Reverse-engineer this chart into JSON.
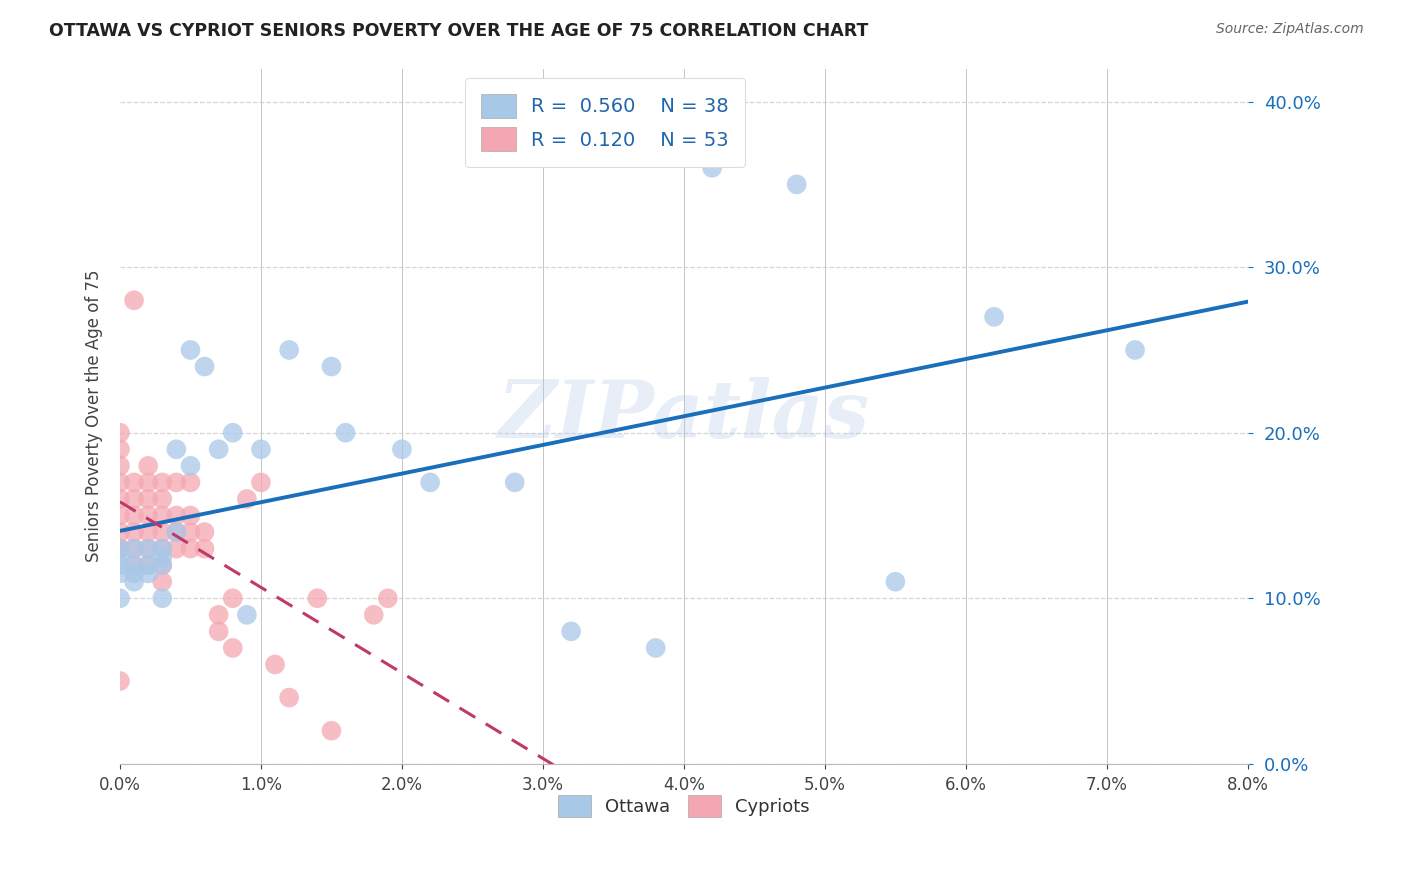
{
  "title": "OTTAWA VS CYPRIOT SENIORS POVERTY OVER THE AGE OF 75 CORRELATION CHART",
  "source": "Source: ZipAtlas.com",
  "ylabel": "Seniors Poverty Over the Age of 75",
  "xlim": [
    0.0,
    0.08
  ],
  "ylim": [
    0.0,
    0.42
  ],
  "xticks": [
    0.0,
    0.01,
    0.02,
    0.03,
    0.04,
    0.05,
    0.06,
    0.07,
    0.08
  ],
  "yticks": [
    0.0,
    0.1,
    0.2,
    0.3,
    0.4
  ],
  "ottawa_color": "#a8c8e8",
  "cypriot_color": "#f4a7b2",
  "ottawa_line_color": "#1a6fba",
  "cypriot_line_color": "#c0396b",
  "ottawa_r": "0.560",
  "ottawa_n": 38,
  "cypriot_r": "0.120",
  "cypriot_n": 53,
  "ottawa_x": [
    0.0,
    0.0,
    0.0,
    0.0,
    0.0,
    0.001,
    0.001,
    0.001,
    0.001,
    0.002,
    0.002,
    0.002,
    0.003,
    0.003,
    0.003,
    0.003,
    0.004,
    0.004,
    0.005,
    0.005,
    0.006,
    0.007,
    0.008,
    0.009,
    0.01,
    0.012,
    0.015,
    0.016,
    0.02,
    0.022,
    0.028,
    0.032,
    0.038,
    0.042,
    0.048,
    0.055,
    0.062,
    0.072
  ],
  "ottawa_y": [
    0.13,
    0.125,
    0.12,
    0.115,
    0.1,
    0.13,
    0.12,
    0.115,
    0.11,
    0.12,
    0.13,
    0.115,
    0.13,
    0.125,
    0.12,
    0.1,
    0.19,
    0.14,
    0.18,
    0.25,
    0.24,
    0.19,
    0.2,
    0.09,
    0.19,
    0.25,
    0.24,
    0.2,
    0.19,
    0.17,
    0.17,
    0.08,
    0.07,
    0.36,
    0.35,
    0.11,
    0.27,
    0.25
  ],
  "cypriot_x": [
    0.0,
    0.0,
    0.0,
    0.0,
    0.0,
    0.0,
    0.0,
    0.0,
    0.0,
    0.0,
    0.001,
    0.001,
    0.001,
    0.001,
    0.001,
    0.001,
    0.001,
    0.002,
    0.002,
    0.002,
    0.002,
    0.002,
    0.002,
    0.002,
    0.003,
    0.003,
    0.003,
    0.003,
    0.003,
    0.003,
    0.003,
    0.004,
    0.004,
    0.004,
    0.004,
    0.005,
    0.005,
    0.005,
    0.005,
    0.006,
    0.006,
    0.007,
    0.007,
    0.008,
    0.008,
    0.009,
    0.01,
    0.011,
    0.012,
    0.014,
    0.015,
    0.018,
    0.019
  ],
  "cypriot_y": [
    0.14,
    0.13,
    0.17,
    0.16,
    0.2,
    0.19,
    0.18,
    0.15,
    0.13,
    0.05,
    0.17,
    0.16,
    0.15,
    0.14,
    0.13,
    0.12,
    0.28,
    0.17,
    0.16,
    0.15,
    0.14,
    0.13,
    0.12,
    0.18,
    0.15,
    0.14,
    0.13,
    0.12,
    0.11,
    0.16,
    0.17,
    0.15,
    0.14,
    0.13,
    0.17,
    0.14,
    0.13,
    0.15,
    0.17,
    0.14,
    0.13,
    0.09,
    0.08,
    0.1,
    0.07,
    0.16,
    0.17,
    0.06,
    0.04,
    0.1,
    0.02,
    0.09,
    0.1
  ],
  "watermark": "ZIPatlas",
  "background_color": "#ffffff",
  "grid_color": "#cccccc",
  "legend_text_color": "#2166ac"
}
